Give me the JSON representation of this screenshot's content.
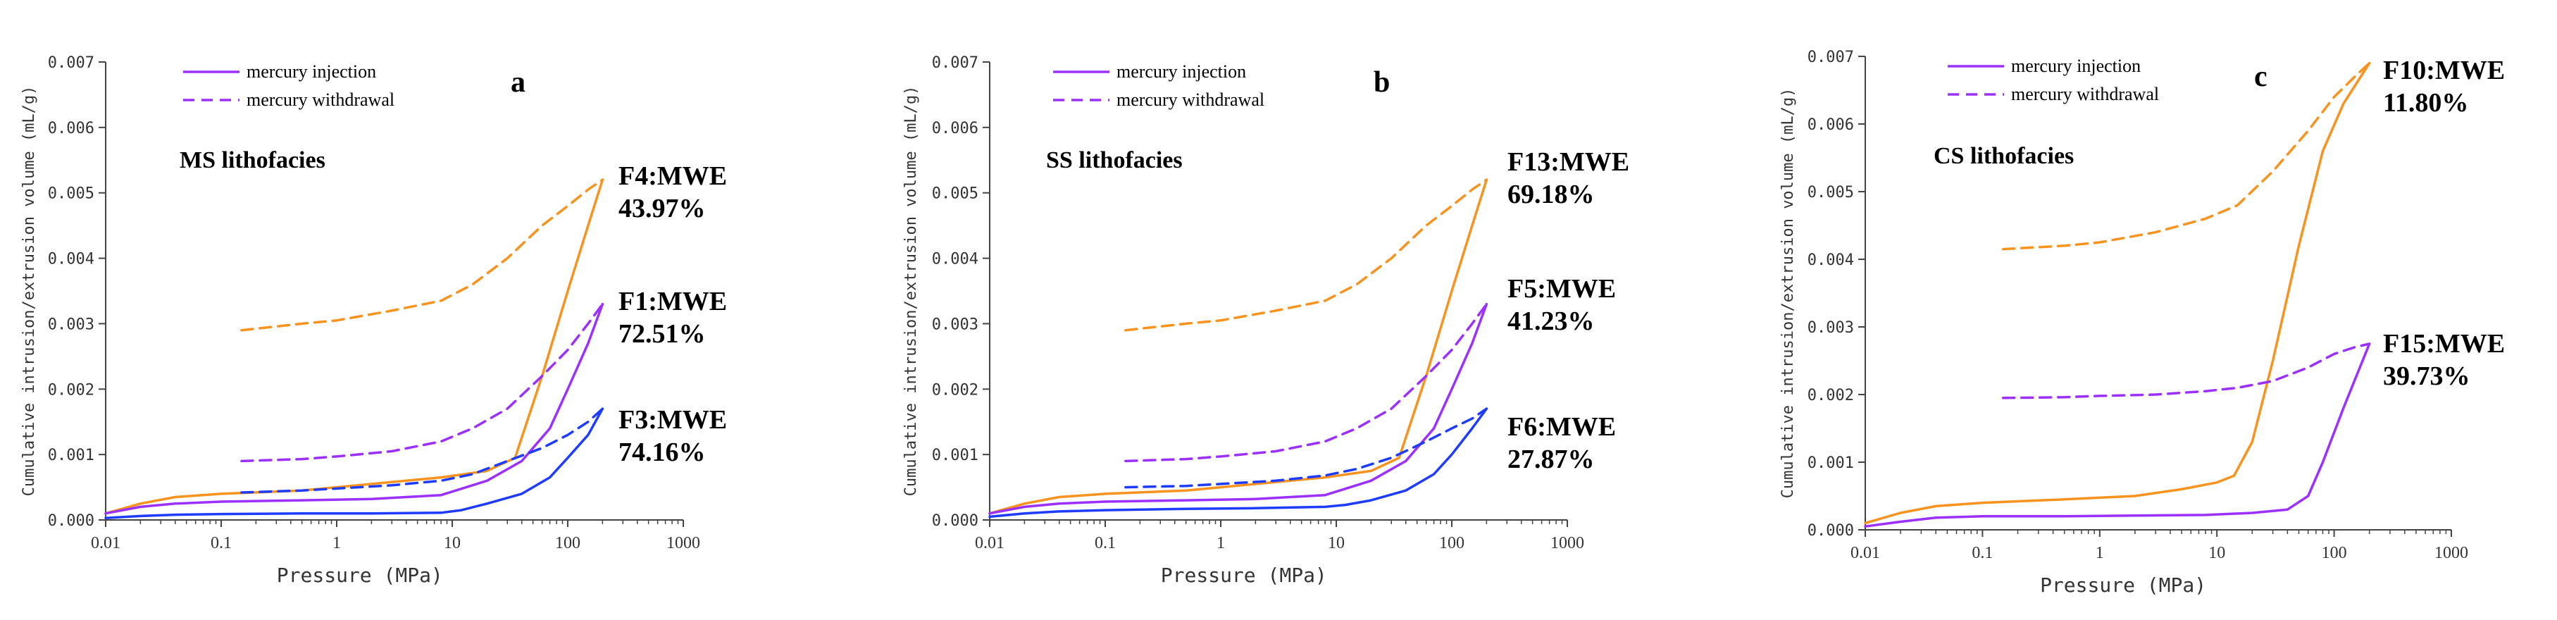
{
  "figure": {
    "legend": {
      "injection": "mercury injection",
      "withdrawal": "mercury withdrawal"
    },
    "colors": {
      "orange": "#f7931e",
      "purple": "#9b30ff",
      "blue": "#1e3cff",
      "axis": "#444444",
      "text": "#000000"
    }
  },
  "chart_data": [
    {
      "type": "line",
      "panel_label": "a",
      "lithofacies": "MS lithofacies",
      "ylabel": "Cumulative intrusion/extrusion volume (mL/g)",
      "xlabel": "Pressure (MPa)",
      "xscale": "log",
      "xlim": [
        0.01,
        1000
      ],
      "ylim": [
        0,
        0.007
      ],
      "xticks": [
        {
          "v": 0.01,
          "label": "0.01"
        },
        {
          "v": 0.1,
          "label": "0.1"
        },
        {
          "v": 1,
          "label": "1"
        },
        {
          "v": 10,
          "label": "10"
        },
        {
          "v": 100,
          "label": "100"
        },
        {
          "v": 1000,
          "label": "1000"
        }
      ],
      "yticks": [
        {
          "v": 0,
          "label": "0.000"
        },
        {
          "v": 0.001,
          "label": "0.001"
        },
        {
          "v": 0.002,
          "label": "0.002"
        },
        {
          "v": 0.003,
          "label": "0.003"
        },
        {
          "v": 0.004,
          "label": "0.004"
        },
        {
          "v": 0.005,
          "label": "0.005"
        },
        {
          "v": 0.006,
          "label": "0.006"
        },
        {
          "v": 0.007,
          "label": "0.007"
        }
      ],
      "series": [
        {
          "name": "F4 mercury injection",
          "color": "orange",
          "style": "solid",
          "x": [
            0.01,
            0.02,
            0.04,
            0.1,
            0.5,
            2,
            8,
            20,
            35,
            60,
            100,
            150,
            200
          ],
          "y": [
            0.0001,
            0.00025,
            0.00035,
            0.0004,
            0.00045,
            0.00055,
            0.00065,
            0.00075,
            0.00095,
            0.0022,
            0.0035,
            0.0045,
            0.0052
          ]
        },
        {
          "name": "F4 mercury withdrawal",
          "color": "orange",
          "style": "dashed",
          "x": [
            0.15,
            0.5,
            1,
            3,
            8,
            15,
            30,
            60,
            100,
            150,
            200
          ],
          "y": [
            0.0029,
            0.003,
            0.00305,
            0.0032,
            0.00335,
            0.0036,
            0.004,
            0.0045,
            0.0048,
            0.00505,
            0.0052
          ]
        },
        {
          "name": "F1 mercury injection",
          "color": "purple",
          "style": "solid",
          "x": [
            0.01,
            0.02,
            0.04,
            0.1,
            0.5,
            2,
            8,
            20,
            40,
            70,
            100,
            150,
            200
          ],
          "y": [
            0.0001,
            0.0002,
            0.00025,
            0.00028,
            0.0003,
            0.00032,
            0.00038,
            0.0006,
            0.0009,
            0.0014,
            0.002,
            0.0027,
            0.0033
          ]
        },
        {
          "name": "F1 mercury withdrawal",
          "color": "purple",
          "style": "dashed",
          "x": [
            0.15,
            0.5,
            1,
            3,
            8,
            15,
            30,
            60,
            100,
            150,
            200
          ],
          "y": [
            0.0009,
            0.00093,
            0.00097,
            0.00105,
            0.0012,
            0.0014,
            0.0017,
            0.0022,
            0.0026,
            0.003,
            0.0033
          ]
        },
        {
          "name": "F3 mercury injection",
          "color": "blue",
          "style": "solid",
          "x": [
            0.01,
            0.02,
            0.04,
            0.1,
            0.5,
            2,
            8,
            12,
            20,
            40,
            70,
            100,
            150,
            200
          ],
          "y": [
            3e-05,
            6e-05,
            8e-05,
            9e-05,
            0.0001,
            0.0001,
            0.00011,
            0.00015,
            0.00025,
            0.0004,
            0.00065,
            0.00095,
            0.0013,
            0.0017
          ]
        },
        {
          "name": "F3 mercury withdrawal",
          "color": "blue",
          "style": "dashed",
          "x": [
            0.15,
            0.5,
            1,
            3,
            8,
            15,
            30,
            60,
            100,
            150,
            200
          ],
          "y": [
            0.00042,
            0.00045,
            0.00048,
            0.00053,
            0.0006,
            0.0007,
            0.0009,
            0.0011,
            0.0013,
            0.0015,
            0.0017
          ]
        }
      ],
      "annotations": [
        {
          "color": "black",
          "line1": "F4:MWE",
          "line2": "43.97%"
        },
        {
          "color": "black",
          "line1": "F1:MWE",
          "line2": "72.51%"
        },
        {
          "color": "black",
          "line1": "F3:MWE",
          "line2": "74.16%"
        }
      ]
    },
    {
      "type": "line",
      "panel_label": "b",
      "lithofacies": "SS lithofacies",
      "ylabel": "Cumulative intrusion/extrusion volume (mL/g)",
      "xlabel": "Pressure (MPa)",
      "xscale": "log",
      "xlim": [
        0.01,
        1000
      ],
      "ylim": [
        0,
        0.007
      ],
      "xticks": [
        {
          "v": 0.01,
          "label": "0.01"
        },
        {
          "v": 0.1,
          "label": "0.1"
        },
        {
          "v": 1,
          "label": "1"
        },
        {
          "v": 10,
          "label": "10"
        },
        {
          "v": 100,
          "label": "100"
        },
        {
          "v": 1000,
          "label": "1000"
        }
      ],
      "yticks": [
        {
          "v": 0,
          "label": "0.000"
        },
        {
          "v": 0.001,
          "label": "0.001"
        },
        {
          "v": 0.002,
          "label": "0.002"
        },
        {
          "v": 0.003,
          "label": "0.003"
        },
        {
          "v": 0.004,
          "label": "0.004"
        },
        {
          "v": 0.005,
          "label": "0.005"
        },
        {
          "v": 0.006,
          "label": "0.006"
        },
        {
          "v": 0.007,
          "label": "0.007"
        }
      ],
      "series": [
        {
          "name": "F13 mercury injection",
          "color": "orange",
          "style": "solid",
          "x": [
            0.01,
            0.02,
            0.04,
            0.1,
            0.5,
            2,
            8,
            20,
            35,
            60,
            100,
            150,
            200
          ],
          "y": [
            0.0001,
            0.00025,
            0.00035,
            0.0004,
            0.00045,
            0.00055,
            0.00065,
            0.00075,
            0.00095,
            0.0022,
            0.0035,
            0.0045,
            0.0052
          ]
        },
        {
          "name": "F13 mercury withdrawal",
          "color": "orange",
          "style": "dashed",
          "x": [
            0.15,
            0.5,
            1,
            3,
            8,
            15,
            30,
            60,
            100,
            150,
            200
          ],
          "y": [
            0.0029,
            0.003,
            0.00305,
            0.0032,
            0.00335,
            0.0036,
            0.004,
            0.0045,
            0.0048,
            0.00505,
            0.0052
          ]
        },
        {
          "name": "F5 mercury injection",
          "color": "purple",
          "style": "solid",
          "x": [
            0.01,
            0.02,
            0.04,
            0.1,
            0.5,
            2,
            8,
            20,
            40,
            70,
            100,
            150,
            200
          ],
          "y": [
            0.0001,
            0.0002,
            0.00025,
            0.00028,
            0.0003,
            0.00032,
            0.00038,
            0.0006,
            0.0009,
            0.0014,
            0.002,
            0.0027,
            0.0033
          ]
        },
        {
          "name": "F5 mercury withdrawal",
          "color": "purple",
          "style": "dashed",
          "x": [
            0.15,
            0.5,
            1,
            3,
            8,
            15,
            30,
            60,
            100,
            150,
            200
          ],
          "y": [
            0.0009,
            0.00093,
            0.00097,
            0.00105,
            0.0012,
            0.0014,
            0.0017,
            0.0022,
            0.0026,
            0.003,
            0.0033
          ]
        },
        {
          "name": "F6 mercury injection",
          "color": "blue",
          "style": "solid",
          "x": [
            0.01,
            0.02,
            0.04,
            0.1,
            0.5,
            2,
            8,
            12,
            20,
            40,
            70,
            100,
            150,
            200
          ],
          "y": [
            5e-05,
            0.0001,
            0.00013,
            0.00015,
            0.00017,
            0.00018,
            0.0002,
            0.00023,
            0.0003,
            0.00045,
            0.0007,
            0.001,
            0.0014,
            0.0017
          ]
        },
        {
          "name": "F6 mercury withdrawal",
          "color": "blue",
          "style": "dashed",
          "x": [
            0.15,
            0.5,
            1,
            3,
            8,
            15,
            30,
            60,
            100,
            150,
            200
          ],
          "y": [
            0.0005,
            0.00052,
            0.00055,
            0.0006,
            0.00068,
            0.00078,
            0.00095,
            0.0012,
            0.0014,
            0.00155,
            0.0017
          ]
        }
      ],
      "annotations": [
        {
          "color": "black",
          "line1": "F13:MWE",
          "line2": "69.18%"
        },
        {
          "color": "black",
          "line1": "F5:MWE",
          "line2": "41.23%"
        },
        {
          "color": "black",
          "line1": "F6:MWE",
          "line2": "27.87%"
        }
      ]
    },
    {
      "type": "line",
      "panel_label": "c",
      "lithofacies": "CS lithofacies",
      "ylabel": "Cumulative intrusion/extrusion volume (mL/g)",
      "xlabel": "Pressure (MPa)",
      "xscale": "log",
      "xlim": [
        0.01,
        1000
      ],
      "ylim": [
        0,
        0.007
      ],
      "xticks": [
        {
          "v": 0.01,
          "label": "0.01"
        },
        {
          "v": 0.1,
          "label": "0.1"
        },
        {
          "v": 1,
          "label": "1"
        },
        {
          "v": 10,
          "label": "10"
        },
        {
          "v": 100,
          "label": "100"
        },
        {
          "v": 1000,
          "label": "1000"
        }
      ],
      "yticks": [
        {
          "v": 0,
          "label": "0.000"
        },
        {
          "v": 0.001,
          "label": "0.001"
        },
        {
          "v": 0.002,
          "label": "0.002"
        },
        {
          "v": 0.003,
          "label": "0.003"
        },
        {
          "v": 0.004,
          "label": "0.004"
        },
        {
          "v": 0.005,
          "label": "0.005"
        },
        {
          "v": 0.006,
          "label": "0.006"
        },
        {
          "v": 0.007,
          "label": "0.007"
        }
      ],
      "series": [
        {
          "name": "F10 mercury injection",
          "color": "orange",
          "style": "solid",
          "x": [
            0.01,
            0.02,
            0.04,
            0.1,
            0.5,
            2,
            5,
            10,
            14,
            20,
            30,
            50,
            80,
            120,
            200
          ],
          "y": [
            0.0001,
            0.00025,
            0.00035,
            0.0004,
            0.00045,
            0.0005,
            0.0006,
            0.0007,
            0.0008,
            0.0013,
            0.0025,
            0.0042,
            0.0056,
            0.0063,
            0.0069
          ]
        },
        {
          "name": "F10 mercury withdrawal",
          "color": "orange",
          "style": "dashed",
          "x": [
            0.15,
            0.5,
            1,
            3,
            8,
            15,
            30,
            60,
            100,
            150,
            200
          ],
          "y": [
            0.00415,
            0.0042,
            0.00425,
            0.0044,
            0.0046,
            0.0048,
            0.0053,
            0.0059,
            0.0064,
            0.0067,
            0.0069
          ]
        },
        {
          "name": "F15 mercury injection",
          "color": "purple",
          "style": "solid",
          "x": [
            0.01,
            0.02,
            0.04,
            0.1,
            0.5,
            2,
            8,
            20,
            40,
            60,
            80,
            120,
            200
          ],
          "y": [
            5e-05,
            0.00012,
            0.00018,
            0.0002,
            0.0002,
            0.00021,
            0.00022,
            0.00025,
            0.0003,
            0.0005,
            0.001,
            0.0018,
            0.00275
          ]
        },
        {
          "name": "F15 mercury withdrawal",
          "color": "purple",
          "style": "dashed",
          "x": [
            0.15,
            0.5,
            1,
            3,
            8,
            15,
            30,
            60,
            100,
            150,
            200
          ],
          "y": [
            0.00195,
            0.00196,
            0.00198,
            0.002,
            0.00205,
            0.0021,
            0.0022,
            0.0024,
            0.0026,
            0.0027,
            0.00275
          ]
        }
      ],
      "annotations": [
        {
          "color": "black",
          "line1": "F10:MWE",
          "line2": "11.80%"
        },
        {
          "color": "black",
          "line1": "F15:MWE",
          "line2": "39.73%"
        }
      ]
    }
  ]
}
